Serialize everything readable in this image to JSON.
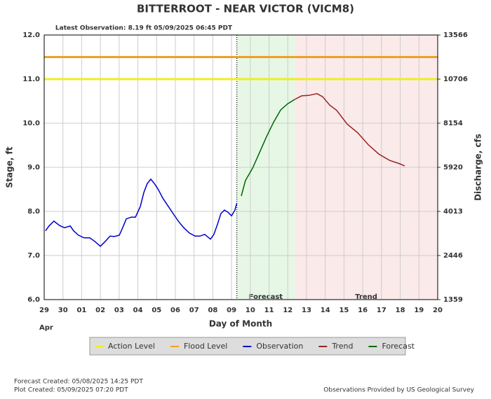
{
  "chart_data": {
    "type": "line",
    "title": "BITTERROOT - NEAR VICTOR  (VICM8)",
    "subtitle": "Latest Observation: 8.19 ft 05/09/2025 06:45 PDT",
    "xlabel": "Day of Month",
    "x_month_label": "Apr",
    "ylabel": "Stage, ft",
    "y2label": "Discharge, cfs",
    "xlim": [
      0,
      21
    ],
    "xticks": [
      {
        "value": 0,
        "label": "29"
      },
      {
        "value": 1,
        "label": "30"
      },
      {
        "value": 2,
        "label": "01"
      },
      {
        "value": 3,
        "label": "02"
      },
      {
        "value": 4,
        "label": "03"
      },
      {
        "value": 5,
        "label": "04"
      },
      {
        "value": 6,
        "label": "05"
      },
      {
        "value": 7,
        "label": "06"
      },
      {
        "value": 8,
        "label": "07"
      },
      {
        "value": 9,
        "label": "08"
      },
      {
        "value": 10,
        "label": "09"
      },
      {
        "value": 11,
        "label": "10"
      },
      {
        "value": 12,
        "label": "11"
      },
      {
        "value": 13,
        "label": "12"
      },
      {
        "value": 14,
        "label": "13"
      },
      {
        "value": 15,
        "label": "14"
      },
      {
        "value": 16,
        "label": "15"
      },
      {
        "value": 17,
        "label": "16"
      },
      {
        "value": 18,
        "label": "17"
      },
      {
        "value": 19,
        "label": "18"
      },
      {
        "value": 20,
        "label": "19"
      },
      {
        "value": 21,
        "label": "20"
      }
    ],
    "ylim": [
      6,
      12
    ],
    "yticks": [
      {
        "value": 6,
        "label": "6.0"
      },
      {
        "value": 7,
        "label": "7.0"
      },
      {
        "value": 8,
        "label": "8.0"
      },
      {
        "value": 9,
        "label": "9.0"
      },
      {
        "value": 10,
        "label": "10.0"
      },
      {
        "value": 11,
        "label": "11.0"
      },
      {
        "value": 12,
        "label": "12.0"
      }
    ],
    "y2ticks": [
      1359,
      2446,
      4013,
      5920,
      8154,
      10706,
      13566
    ],
    "grid": true,
    "now_x": 10.28,
    "regions": [
      {
        "label": "Forecast",
        "xlim": [
          10.28,
          13.37
        ],
        "color": "#e6f7e6"
      },
      {
        "label": "Trend",
        "xlim": [
          13.37,
          21
        ],
        "color": "#fbeaea"
      }
    ],
    "levels": [
      {
        "name": "Action Level",
        "color": "#eeee22",
        "value": 11
      },
      {
        "name": "Flood Level",
        "color": "#f0a020",
        "value": 11.5
      }
    ],
    "series": [
      {
        "name": "Observation",
        "color": "#0000cc",
        "x": [
          0.07,
          0.26,
          0.52,
          0.82,
          1.09,
          1.39,
          1.57,
          1.83,
          2.13,
          2.43,
          2.7,
          3.0,
          3.26,
          3.52,
          3.74,
          4.01,
          4.19,
          4.38,
          4.64,
          4.87,
          5.13,
          5.32,
          5.5,
          5.69,
          5.88,
          6.07,
          6.33,
          6.63,
          6.93,
          7.19,
          7.45,
          7.75,
          8.05,
          8.31,
          8.57,
          8.87,
          9.06,
          9.25,
          9.43,
          9.62,
          9.81,
          10.0,
          10.18,
          10.28
        ],
        "values": [
          7.56,
          7.67,
          7.78,
          7.68,
          7.63,
          7.67,
          7.56,
          7.46,
          7.4,
          7.4,
          7.32,
          7.21,
          7.32,
          7.44,
          7.43,
          7.46,
          7.63,
          7.83,
          7.87,
          7.87,
          8.11,
          8.43,
          8.63,
          8.73,
          8.63,
          8.51,
          8.3,
          8.11,
          7.92,
          7.76,
          7.63,
          7.51,
          7.44,
          7.44,
          7.48,
          7.37,
          7.48,
          7.71,
          7.95,
          8.03,
          7.98,
          7.9,
          8.03,
          8.19
        ]
      },
      {
        "name": "Trend",
        "color": "#992222",
        "x": [
          13.37,
          13.74,
          14.11,
          14.56,
          14.86,
          15.24,
          15.61,
          16.17,
          16.74,
          17.3,
          17.86,
          18.42,
          18.98,
          19.24
        ],
        "values": [
          10.54,
          10.62,
          10.63,
          10.67,
          10.6,
          10.41,
          10.29,
          9.98,
          9.78,
          9.51,
          9.3,
          9.16,
          9.08,
          9.03
        ]
      },
      {
        "name": "Forecast",
        "color": "#006600",
        "x": [
          10.52,
          10.74,
          11.12,
          11.49,
          11.87,
          12.24,
          12.62,
          12.99,
          13.37
        ],
        "values": [
          8.35,
          8.7,
          8.98,
          9.33,
          9.7,
          10.02,
          10.3,
          10.44,
          10.54
        ]
      }
    ]
  },
  "footer": {
    "forecast_created": "Forecast Created: 05/08/2025 14:25 PDT",
    "plot_created": "Plot Created: 05/09/2025 07:20 PDT",
    "credit": "Observations Provided by US Geological Survey"
  }
}
